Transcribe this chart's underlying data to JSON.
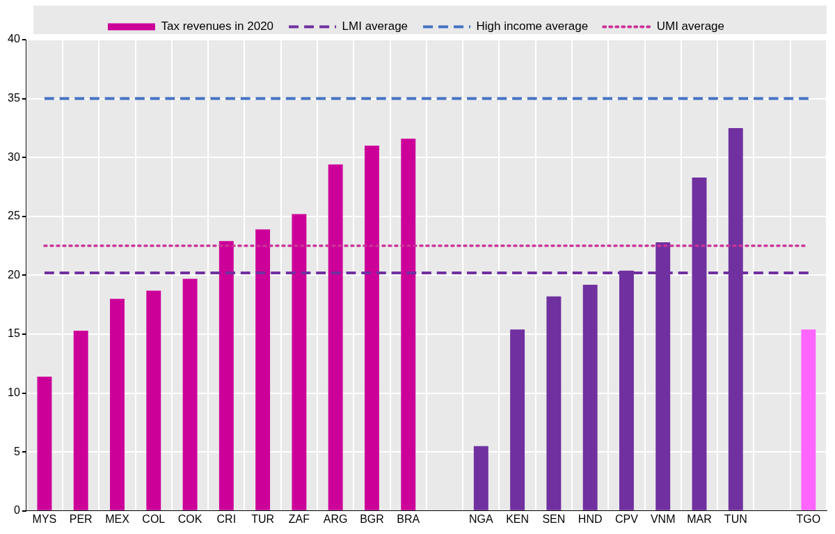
{
  "chart_data": {
    "type": "bar",
    "categories": [
      "MYS",
      "PER",
      "MEX",
      "COL",
      "COK",
      "CRI",
      "TUR",
      "ZAF",
      "ARG",
      "BGR",
      "BRA",
      null,
      "NGA",
      "KEN",
      "SEN",
      "HND",
      "CPV",
      "VNM",
      "MAR",
      "TUN",
      null,
      "TGO"
    ],
    "series": [
      {
        "name": "Tax revenues in 2020",
        "color": "#cc0099",
        "colors": [
          "#cc0099",
          "#cc0099",
          "#cc0099",
          "#cc0099",
          "#cc0099",
          "#cc0099",
          "#cc0099",
          "#cc0099",
          "#cc0099",
          "#cc0099",
          "#cc0099",
          "#cc0099",
          "#7030a0",
          "#7030a0",
          "#7030a0",
          "#7030a0",
          "#7030a0",
          "#7030a0",
          "#7030a0",
          "#7030a0",
          "#7030a0",
          "#ff66ff"
        ],
        "values": [
          11.4,
          15.3,
          18.0,
          18.7,
          19.7,
          22.9,
          23.9,
          25.2,
          29.4,
          31.0,
          31.6,
          null,
          5.5,
          15.4,
          18.2,
          19.2,
          20.4,
          22.8,
          28.3,
          32.5,
          null,
          15.4
        ]
      },
      {
        "name": "LMI average",
        "type": "line",
        "color": "#7030a0",
        "line_style": "dashed",
        "values": [
          20.2,
          20.2,
          20.2,
          20.2,
          20.2,
          20.2,
          20.2,
          20.2,
          20.2,
          20.2,
          20.2,
          20.2,
          20.2,
          20.2,
          20.2,
          20.2,
          20.2,
          20.2,
          20.2,
          20.2,
          20.2,
          20.2
        ]
      },
      {
        "name": "High income average",
        "type": "line",
        "color": "#4472c4",
        "line_style": "dashed",
        "values": [
          35,
          35,
          35,
          35,
          35,
          35,
          35,
          35,
          35,
          35,
          35,
          35,
          35,
          35,
          35,
          35,
          35,
          35,
          35,
          35,
          35,
          35
        ]
      },
      {
        "name": "UMI average",
        "type": "line",
        "color": "#cc3399",
        "line_style": "dotted",
        "values": [
          22.5,
          22.5,
          22.5,
          22.5,
          22.5,
          22.5,
          22.5,
          22.5,
          22.5,
          22.5,
          22.5,
          22.5,
          22.5,
          22.5,
          22.5,
          22.5,
          22.5,
          22.5,
          22.5,
          22.5,
          22.5,
          22.5
        ]
      }
    ],
    "ylim": [
      0,
      40
    ],
    "yticks": [
      0,
      5,
      10,
      15,
      20,
      25,
      30,
      35,
      40
    ],
    "grid": true,
    "legend": "top"
  }
}
